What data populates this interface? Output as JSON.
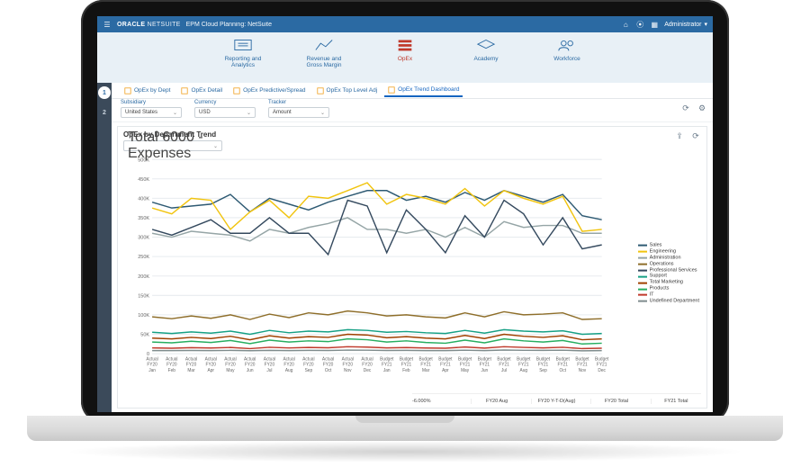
{
  "header": {
    "brand_main": "ORACLE",
    "brand_sub": "NETSUITE",
    "app_title": "EPM Cloud Planning: NetSuite",
    "user": "Administrator"
  },
  "nav": [
    {
      "id": "reporting",
      "label": "Reporting and\nAnalytics",
      "icon": "report",
      "active": false
    },
    {
      "id": "revenue",
      "label": "Revenue and\nGross Margin",
      "icon": "trend",
      "active": false
    },
    {
      "id": "opex",
      "label": "OpEx",
      "icon": "stack",
      "active": true
    },
    {
      "id": "academy",
      "label": "Academy",
      "icon": "grad",
      "active": false
    },
    {
      "id": "workforce",
      "label": "Workforce",
      "icon": "people",
      "active": false
    }
  ],
  "steps": [
    {
      "n": "1",
      "active": true
    },
    {
      "n": "2",
      "active": false
    }
  ],
  "tabs": [
    {
      "label": "OpEx by Dept",
      "active": false
    },
    {
      "label": "OpEx Detail",
      "active": false
    },
    {
      "label": "OpEx Predictive/Spread",
      "active": false
    },
    {
      "label": "OpEx Top Level Adj",
      "active": false
    },
    {
      "label": "OpEx Trend Dashboard",
      "active": true
    }
  ],
  "filters": {
    "subsidiary": {
      "label": "Subsidiary",
      "value": "United States"
    },
    "currency": {
      "label": "Currency",
      "value": "USD"
    },
    "tracker": {
      "label": "Tracker",
      "value": "Amount"
    }
  },
  "card": {
    "title": "OpEx by Department Trend",
    "account": "Total 6000 - Expenses"
  },
  "chart": {
    "type": "line",
    "ylim": [
      0,
      500000
    ],
    "ytick_step": 50000,
    "ytick_labels": [
      "0",
      "50K",
      "100K",
      "150K",
      "200K",
      "250K",
      "300K",
      "350K",
      "400K",
      "450K",
      "500K"
    ],
    "background_color": "#ffffff",
    "grid_color": "#e8ecef",
    "x_labels_top": [
      "Actual",
      "Actual",
      "Actual",
      "Actual",
      "Actual",
      "Actual",
      "Actual",
      "Actual",
      "Actual",
      "Actual",
      "Actual",
      "Actual",
      "Budget",
      "Budget",
      "Budget",
      "Budget",
      "Budget",
      "Budget",
      "Budget",
      "Budget",
      "Budget",
      "Budget",
      "Budget",
      "Budget"
    ],
    "x_labels_mid": [
      "FY20",
      "FY20",
      "FY20",
      "FY20",
      "FY20",
      "FY20",
      "FY20",
      "FY20",
      "FY20",
      "FY20",
      "FY20",
      "FY20",
      "FY21",
      "FY21",
      "FY21",
      "FY21",
      "FY21",
      "FY21",
      "FY21",
      "FY21",
      "FY21",
      "FY21",
      "FY21",
      "FY21"
    ],
    "x_labels_bot": [
      "Jan",
      "Feb",
      "Mar",
      "Apr",
      "May",
      "Jun",
      "Jul",
      "Aug",
      "Sep",
      "Oct",
      "Nov",
      "Dec",
      "Jan",
      "Feb",
      "Mar",
      "Apr",
      "May",
      "Jun",
      "Jul",
      "Aug",
      "Sep",
      "Oct",
      "Nov",
      "Dec"
    ],
    "series": [
      {
        "name": "Sales",
        "color": "#2e5a73",
        "values": [
          390000,
          375000,
          380000,
          385000,
          410000,
          365000,
          400000,
          385000,
          370000,
          390000,
          405000,
          420000,
          420000,
          395000,
          405000,
          390000,
          415000,
          395000,
          420000,
          405000,
          390000,
          410000,
          355000,
          345000
        ]
      },
      {
        "name": "Engineering",
        "color": "#f1c40f",
        "values": [
          375000,
          360000,
          400000,
          395000,
          320000,
          365000,
          395000,
          350000,
          405000,
          400000,
          420000,
          440000,
          385000,
          410000,
          400000,
          385000,
          425000,
          380000,
          420000,
          400000,
          385000,
          405000,
          315000,
          320000
        ]
      },
      {
        "name": "Administration",
        "color": "#95a5a6",
        "values": [
          310000,
          300000,
          315000,
          310000,
          305000,
          290000,
          320000,
          310000,
          325000,
          335000,
          350000,
          320000,
          320000,
          310000,
          320000,
          300000,
          325000,
          300000,
          340000,
          325000,
          330000,
          330000,
          310000,
          310000
        ]
      },
      {
        "name": "Operations",
        "color": "#8e6e2a",
        "values": [
          95000,
          90000,
          97000,
          91000,
          100000,
          88000,
          102000,
          93000,
          105000,
          100000,
          110000,
          105000,
          97000,
          100000,
          95000,
          92000,
          105000,
          95000,
          108000,
          100000,
          102000,
          105000,
          88000,
          90000
        ]
      },
      {
        "name": "Professional Services",
        "color": "#34495e",
        "values": [
          320000,
          305000,
          325000,
          345000,
          310000,
          310000,
          350000,
          310000,
          310000,
          255000,
          395000,
          380000,
          260000,
          370000,
          320000,
          260000,
          355000,
          300000,
          395000,
          360000,
          280000,
          350000,
          270000,
          280000
        ]
      },
      {
        "name": "Support",
        "color": "#16a085",
        "values": [
          55000,
          52000,
          56000,
          53000,
          58000,
          50000,
          60000,
          54000,
          58000,
          56000,
          62000,
          60000,
          55000,
          57000,
          54000,
          52000,
          60000,
          53000,
          62000,
          58000,
          56000,
          59000,
          50000,
          52000
        ]
      },
      {
        "name": "Total Marketing",
        "color": "#a04000",
        "values": [
          40000,
          38000,
          42000,
          39000,
          45000,
          36000,
          46000,
          40000,
          44000,
          42000,
          50000,
          48000,
          41000,
          44000,
          40000,
          38000,
          47000,
          39000,
          50000,
          45000,
          42000,
          46000,
          36000,
          38000
        ]
      },
      {
        "name": "Products",
        "color": "#27ae60",
        "values": [
          30000,
          28000,
          32000,
          29000,
          34000,
          26000,
          35000,
          30000,
          33000,
          31000,
          38000,
          36000,
          30000,
          33000,
          29000,
          27000,
          35000,
          28000,
          38000,
          33000,
          30000,
          34000,
          25000,
          27000
        ]
      },
      {
        "name": "IT",
        "color": "#c0392b",
        "values": [
          15000,
          14000,
          15500,
          14500,
          16000,
          13000,
          16500,
          14800,
          16000,
          15200,
          18000,
          17000,
          15000,
          15800,
          14600,
          14000,
          17200,
          14200,
          18000,
          16200,
          15000,
          16500,
          13200,
          14000
        ]
      },
      {
        "name": "Undefined Department",
        "color": "#7f8c8d",
        "values": [
          8000,
          8000,
          8200,
          8000,
          8400,
          7800,
          8600,
          8100,
          8500,
          8300,
          9200,
          9000,
          8200,
          8600,
          8100,
          7900,
          9000,
          8000,
          9400,
          8800,
          8400,
          8900,
          7600,
          7900
        ]
      }
    ]
  },
  "summary": {
    "pct": "-6.000%",
    "cells": [
      "FY20 Aug",
      "FY20 Y-T-D(Aug)",
      "FY20 Total",
      "FY21 Total"
    ]
  }
}
